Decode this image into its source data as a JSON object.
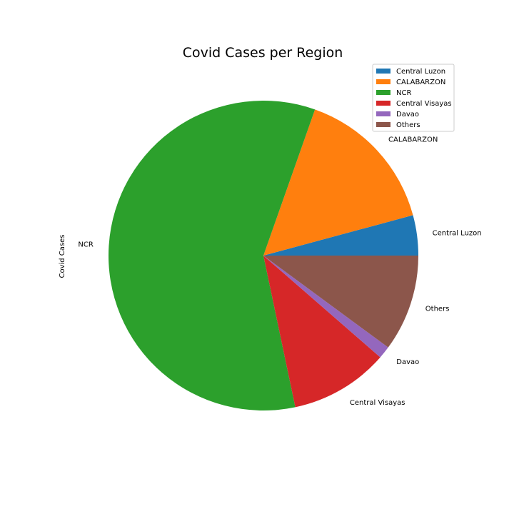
{
  "chart_data": {
    "type": "pie",
    "title": "Covid Cases per Region",
    "ylabel": "Covid Cases",
    "start_angle_deg": 0,
    "direction": "counterclockwise",
    "legend_position": "top-right",
    "slices": [
      {
        "label": "Central Luzon",
        "value": 4.2,
        "color": "#1f77b4"
      },
      {
        "label": "CALABARZON",
        "value": 15.4,
        "color": "#ff7f0e"
      },
      {
        "label": "NCR",
        "value": 58.7,
        "color": "#2ca02c"
      },
      {
        "label": "Central Visayas",
        "value": 10.3,
        "color": "#d62728"
      },
      {
        "label": "Davao",
        "value": 1.3,
        "color": "#9467bd"
      },
      {
        "label": "Others",
        "value": 10.1,
        "color": "#8c564b"
      }
    ]
  }
}
